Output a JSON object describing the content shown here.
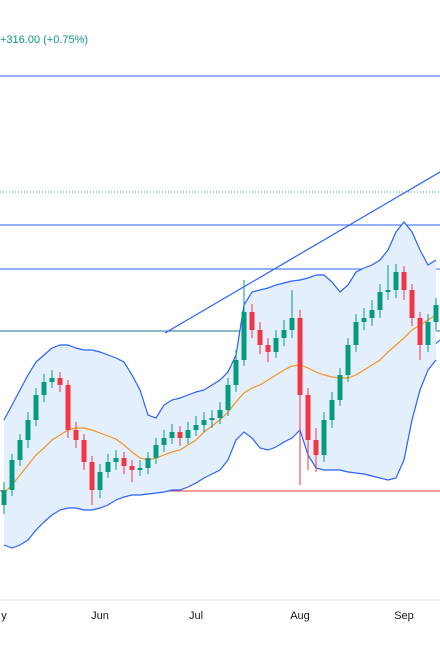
{
  "chart_data": {
    "type": "candlestick",
    "subtitle": "+316.00 (+0.75%)",
    "subtitle_color": "#089981",
    "categories": [
      "y",
      null,
      null,
      null,
      null,
      null,
      null,
      null,
      null,
      null,
      null,
      null,
      "Jun",
      null,
      null,
      null,
      null,
      null,
      null,
      null,
      null,
      null,
      null,
      null,
      "Jul",
      null,
      null,
      null,
      null,
      null,
      null,
      null,
      null,
      null,
      null,
      null,
      null,
      "Aug",
      null,
      null,
      null,
      null,
      null,
      null,
      null,
      null,
      null,
      null,
      null,
      null,
      "Sep",
      null,
      null,
      null,
      null
    ],
    "open": [
      95,
      110,
      140,
      160,
      180,
      205,
      218,
      222,
      215,
      170,
      160,
      138,
      110,
      128,
      138,
      142,
      134,
      130,
      132,
      142,
      155,
      162,
      168,
      162,
      170,
      175,
      180,
      182,
      190,
      215,
      240,
      288,
      270,
      255,
      248,
      262,
      270,
      282,
      205,
      160,
      145,
      180,
      200,
      225,
      255,
      278,
      282,
      290,
      308,
      310,
      328,
      310,
      282,
      255,
      278
    ],
    "high": [
      118,
      146,
      166,
      188,
      212,
      226,
      230,
      228,
      220,
      178,
      166,
      144,
      136,
      146,
      150,
      148,
      140,
      140,
      148,
      162,
      170,
      176,
      174,
      178,
      184,
      188,
      190,
      198,
      222,
      250,
      320,
      296,
      278,
      262,
      270,
      280,
      310,
      290,
      212,
      172,
      188,
      208,
      232,
      262,
      286,
      292,
      300,
      316,
      335,
      336,
      334,
      316,
      288,
      286,
      302
    ],
    "low": [
      86,
      104,
      134,
      152,
      174,
      198,
      212,
      208,
      162,
      152,
      130,
      95,
      102,
      122,
      130,
      126,
      118,
      124,
      126,
      136,
      148,
      156,
      154,
      156,
      164,
      168,
      172,
      176,
      184,
      208,
      234,
      262,
      246,
      238,
      242,
      254,
      262,
      115,
      130,
      128,
      138,
      172,
      194,
      218,
      248,
      270,
      274,
      282,
      300,
      302,
      300,
      274,
      240,
      248,
      270
    ],
    "close": [
      110,
      140,
      160,
      180,
      205,
      218,
      222,
      215,
      170,
      160,
      138,
      110,
      128,
      138,
      142,
      134,
      130,
      132,
      142,
      155,
      162,
      168,
      162,
      170,
      175,
      180,
      182,
      190,
      215,
      240,
      288,
      270,
      255,
      248,
      262,
      270,
      282,
      205,
      160,
      145,
      180,
      200,
      225,
      255,
      278,
      282,
      290,
      308,
      310,
      328,
      310,
      282,
      255,
      278,
      295
    ],
    "up_color": "#089981",
    "down_color": "#f23645",
    "bands": {
      "upper": {
        "color": "#2962ff",
        "values": [
          180,
          195,
          210,
          225,
          238,
          245,
          252,
          255,
          255,
          252,
          250,
          250,
          248,
          245,
          242,
          238,
          225,
          210,
          185,
          182,
          195,
          200,
          202,
          205,
          208,
          210,
          215,
          220,
          228,
          245,
          295,
          308,
          310,
          312,
          315,
          317,
          319,
          320,
          322,
          325,
          325,
          318,
          308,
          315,
          328,
          332,
          335,
          340,
          350,
          368,
          378,
          368,
          350,
          335,
          340
        ]
      },
      "middle": {
        "color": "#f7931e",
        "values": [
          107,
          115,
          125,
          135,
          145,
          152,
          160,
          165,
          170,
          172,
          172,
          170,
          167,
          164,
          161,
          155,
          148,
          142,
          140,
          142,
          145,
          148,
          150,
          155,
          160,
          168,
          174,
          180,
          188,
          198,
          207,
          212,
          215,
          220,
          225,
          230,
          234,
          235,
          232,
          228,
          225,
          223,
          222,
          222,
          225,
          230,
          235,
          240,
          248,
          255,
          262,
          270,
          275,
          280,
          285
        ]
      },
      "lower": {
        "color": "#2962ff",
        "values": [
          55,
          52,
          55,
          60,
          70,
          78,
          85,
          90,
          92,
          92,
          90,
          90,
          92,
          95,
          100,
          103,
          105,
          105,
          106,
          107,
          108,
          110,
          110,
          113,
          117,
          122,
          126,
          130,
          140,
          160,
          168,
          162,
          152,
          150,
          153,
          158,
          162,
          170,
          145,
          132,
          130,
          130,
          130,
          128,
          127,
          126,
          124,
          122,
          120,
          122,
          140,
          180,
          210,
          230,
          240
        ]
      },
      "fill": "#e3effd"
    },
    "ylim": [
      0,
      600
    ]
  }
}
